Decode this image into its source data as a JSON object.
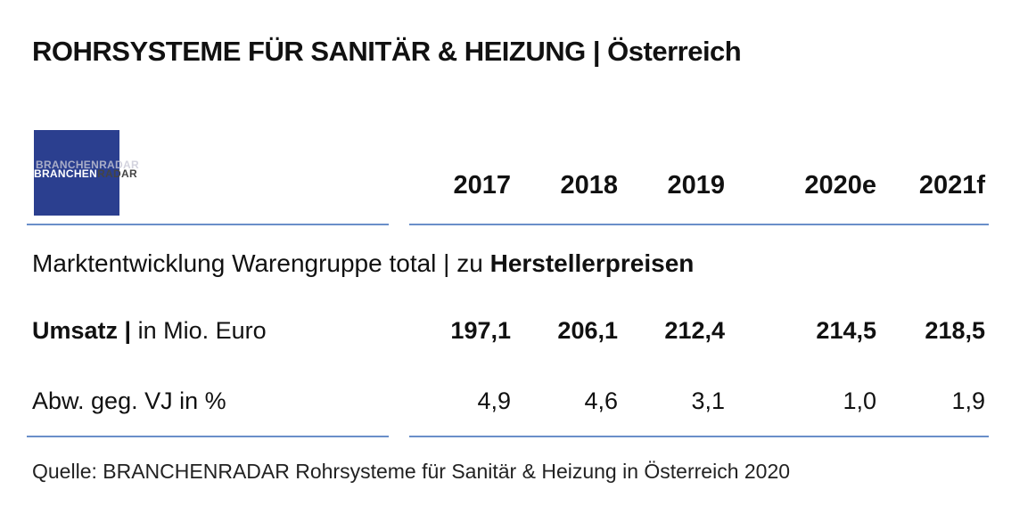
{
  "title": {
    "main": "ROHRSYSTEME FÜR SANITÄR & HEIZUNG",
    "separator": " | ",
    "country": "Österreich"
  },
  "logo": {
    "part1": "BRANCHEN",
    "part2": "RADAR"
  },
  "section": {
    "prefix": "Marktentwicklung Warengruppe total | zu ",
    "bold": "Herstellerpreisen"
  },
  "rows": {
    "revenue": {
      "label_bold": "Umsatz |",
      "label_rest": " in Mio. Euro"
    },
    "change": {
      "label": "Abw. geg. VJ in %"
    }
  },
  "source": "Quelle: BRANCHENRADAR Rohrsysteme für Sanitär & Heizung in Österreich 2020",
  "colors": {
    "logo_bg": "#2b3f8f",
    "rule": "#6a8fc9"
  },
  "chart_data": {
    "type": "table",
    "title": "ROHRSYSTEME FÜR SANITÄR & HEIZUNG | Österreich",
    "columns": [
      "2017",
      "2018",
      "2019",
      "2020e",
      "2021f"
    ],
    "series": [
      {
        "name": "Umsatz | in Mio. Euro",
        "values": [
          "197,1",
          "206,1",
          "212,4",
          "214,5",
          "218,5"
        ]
      },
      {
        "name": "Abw. geg. VJ in %",
        "values": [
          "4,9",
          "4,6",
          "3,1",
          "1,0",
          "1,9"
        ]
      }
    ]
  }
}
